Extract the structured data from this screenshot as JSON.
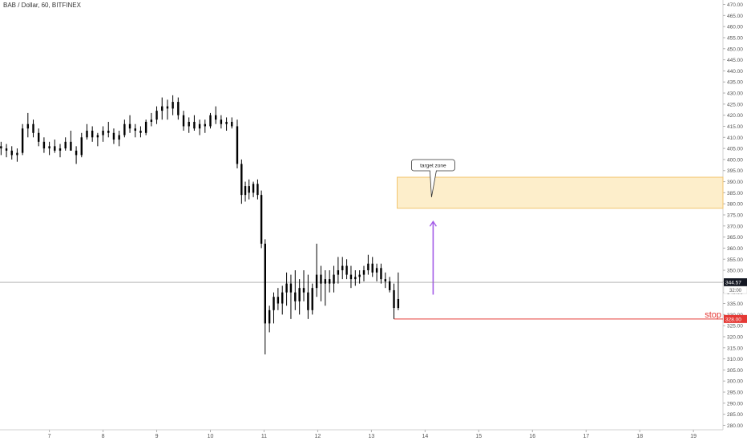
{
  "header": {
    "title": "BAB / Dollar, 60, BITFINEX"
  },
  "chart_data": {
    "type": "candlestick",
    "y_ticks": [
      470,
      465,
      460,
      455,
      450,
      445,
      440,
      435,
      430,
      425,
      420,
      415,
      410,
      405,
      400,
      395,
      390,
      385,
      380,
      375,
      370,
      365,
      360,
      355,
      350,
      345,
      340,
      335,
      330,
      325,
      320,
      315,
      310,
      305,
      300,
      295,
      290,
      285,
      280
    ],
    "ylim": [
      278,
      472
    ],
    "x_ticks": [
      "7",
      "8",
      "9",
      "10",
      "11",
      "12",
      "13",
      "14",
      "15",
      "16",
      "17",
      "18",
      "19"
    ],
    "x_tick_days": [
      7,
      8,
      9,
      10,
      11,
      12,
      13,
      14,
      15,
      16,
      17,
      18,
      19
    ],
    "xlim": [
      6.08,
      19.55
    ],
    "series_color": "#000000",
    "price_line": {
      "value": 344.57,
      "label": "344.57",
      "color": "#888888"
    },
    "price_line_sub_label": "32:00",
    "stop": {
      "value": 328.0,
      "label": "328.00",
      "text": "stop",
      "color": "#e53935",
      "x_start": 13.42
    },
    "target_zone": {
      "low": 378,
      "high": 392,
      "x_start": 13.48,
      "fill": "#fdeecb",
      "stroke": "#f2c46d"
    },
    "callout": {
      "text": "target zone",
      "x": 14.15,
      "y": 383
    },
    "arrow": {
      "x": 14.15,
      "from": 339,
      "to": 372,
      "color": "#a35ce8"
    },
    "candles": [
      [
        6.1,
        405,
        408,
        402,
        406
      ],
      [
        6.2,
        405,
        407,
        401,
        404
      ],
      [
        6.3,
        404,
        406,
        400,
        402
      ],
      [
        6.4,
        402,
        405,
        399,
        403
      ],
      [
        6.5,
        403,
        416,
        402,
        414
      ],
      [
        6.6,
        414,
        421,
        410,
        416
      ],
      [
        6.7,
        416,
        418,
        410,
        412
      ],
      [
        6.8,
        412,
        414,
        406,
        408
      ],
      [
        6.9,
        408,
        410,
        403,
        405
      ],
      [
        7.0,
        405,
        408,
        402,
        406
      ],
      [
        7.1,
        406,
        409,
        403,
        404
      ],
      [
        7.2,
        404,
        407,
        401,
        405
      ],
      [
        7.3,
        405,
        410,
        404,
        408
      ],
      [
        7.4,
        408,
        413,
        405,
        404
      ],
      [
        7.5,
        404,
        406,
        398,
        402
      ],
      [
        7.6,
        402,
        412,
        401,
        410
      ],
      [
        7.7,
        410,
        416,
        409,
        413
      ],
      [
        7.8,
        413,
        415,
        408,
        410
      ],
      [
        7.9,
        410,
        412,
        406,
        411
      ],
      [
        8.0,
        411,
        415,
        408,
        413
      ],
      [
        8.1,
        413,
        417,
        410,
        412
      ],
      [
        8.2,
        412,
        414,
        407,
        409
      ],
      [
        8.3,
        409,
        413,
        406,
        411
      ],
      [
        8.4,
        411,
        418,
        410,
        416
      ],
      [
        8.5,
        416,
        420,
        412,
        414
      ],
      [
        8.6,
        414,
        416,
        410,
        413
      ],
      [
        8.7,
        413,
        415,
        410,
        412
      ],
      [
        8.8,
        412,
        418,
        411,
        417
      ],
      [
        8.9,
        417,
        421,
        415,
        418
      ],
      [
        9.0,
        418,
        424,
        416,
        422
      ],
      [
        9.1,
        422,
        428,
        418,
        424
      ],
      [
        9.2,
        424,
        427,
        418,
        423
      ],
      [
        9.3,
        423,
        429,
        420,
        426
      ],
      [
        9.4,
        426,
        428,
        418,
        420
      ],
      [
        9.5,
        420,
        422,
        413,
        415
      ],
      [
        9.6,
        415,
        419,
        412,
        417
      ],
      [
        9.7,
        417,
        420,
        413,
        414
      ],
      [
        9.8,
        414,
        418,
        411,
        416
      ],
      [
        9.9,
        416,
        418,
        412,
        415
      ],
      [
        10.0,
        415,
        421,
        414,
        420
      ],
      [
        10.1,
        420,
        424,
        416,
        418
      ],
      [
        10.2,
        418,
        420,
        414,
        416
      ],
      [
        10.3,
        416,
        419,
        413,
        417
      ],
      [
        10.4,
        417,
        419,
        414,
        415
      ],
      [
        10.5,
        415,
        418,
        396,
        398
      ],
      [
        10.58,
        398,
        400,
        380,
        384
      ],
      [
        10.65,
        384,
        390,
        381,
        388
      ],
      [
        10.72,
        388,
        391,
        382,
        385
      ],
      [
        10.8,
        385,
        390,
        383,
        389
      ],
      [
        10.88,
        389,
        391,
        382,
        384
      ],
      [
        10.95,
        384,
        386,
        360,
        362
      ],
      [
        11.02,
        362,
        364,
        312,
        326
      ],
      [
        11.1,
        326,
        334,
        322,
        332
      ],
      [
        11.18,
        332,
        340,
        326,
        338
      ],
      [
        11.26,
        338,
        342,
        332,
        335
      ],
      [
        11.34,
        335,
        343,
        330,
        340
      ],
      [
        11.42,
        340,
        349,
        334,
        344
      ],
      [
        11.5,
        344,
        348,
        328,
        340
      ],
      [
        11.58,
        340,
        350,
        332,
        336
      ],
      [
        11.66,
        336,
        346,
        330,
        342
      ],
      [
        11.74,
        342,
        350,
        336,
        340
      ],
      [
        11.82,
        340,
        348,
        328,
        332
      ],
      [
        11.9,
        332,
        344,
        330,
        342
      ],
      [
        11.98,
        342,
        362,
        338,
        348
      ],
      [
        12.06,
        348,
        352,
        336,
        344
      ],
      [
        12.14,
        344,
        350,
        334,
        346
      ],
      [
        12.22,
        346,
        350,
        340,
        344
      ],
      [
        12.3,
        344,
        352,
        340,
        348
      ],
      [
        12.38,
        348,
        356,
        344,
        350
      ],
      [
        12.46,
        350,
        356,
        346,
        352
      ],
      [
        12.54,
        352,
        355,
        346,
        348
      ],
      [
        12.62,
        348,
        352,
        342,
        346
      ],
      [
        12.7,
        346,
        350,
        343,
        347
      ],
      [
        12.78,
        347,
        350,
        344,
        348
      ],
      [
        12.86,
        348,
        352,
        345,
        350
      ],
      [
        12.94,
        350,
        357,
        348,
        353
      ],
      [
        13.02,
        353,
        356,
        347,
        349
      ],
      [
        13.1,
        349,
        353,
        345,
        351
      ],
      [
        13.18,
        351,
        353,
        344,
        346
      ],
      [
        13.26,
        346,
        349,
        342,
        345
      ],
      [
        13.34,
        345,
        347,
        340,
        341
      ],
      [
        13.42,
        341,
        344,
        328,
        333
      ],
      [
        13.5,
        333,
        349,
        332,
        337
      ]
    ]
  }
}
